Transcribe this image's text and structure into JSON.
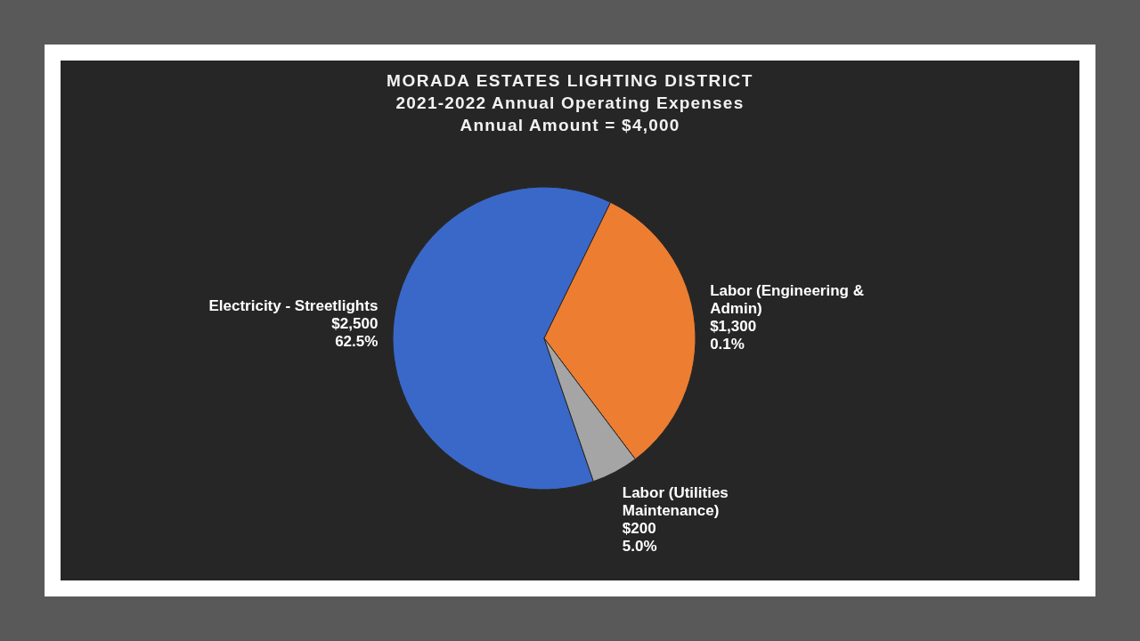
{
  "chart_data": {
    "type": "pie",
    "title": "MORADA ESTATES LIGHTING DISTRICT",
    "subtitle": "2021-2022 Annual Operating Expenses",
    "annotations": [
      "Annual Amount = $4,000"
    ],
    "categories": [
      "Electricity - Streetlights",
      "Labor (Engineering & Admin)",
      "Labor (Utilities Maintenance)"
    ],
    "values": [
      2500,
      1300,
      200
    ],
    "colors": [
      "#3a68c8",
      "#ed7d31",
      "#a5a5a5"
    ],
    "value_labels": [
      "$2,500\n62.5%",
      "$1,300\n0.1%",
      "$200\n5.0%"
    ],
    "legend": false
  }
}
